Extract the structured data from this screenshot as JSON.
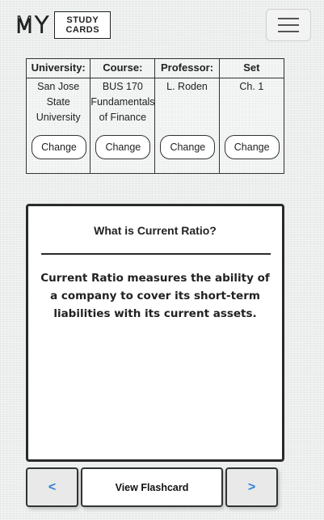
{
  "header": {
    "logo_my": "MY",
    "logo_line1": "STUDY",
    "logo_line2": "CARDS",
    "menu_icon": "hamburger-menu-icon"
  },
  "info": {
    "columns": [
      {
        "heading": "University:",
        "value": "San Jose State University",
        "button": "Change"
      },
      {
        "heading": "Course:",
        "value": "BUS 170 Fundamentals of Finance",
        "button": "Change"
      },
      {
        "heading": "Professor:",
        "value": "L. Roden",
        "button": "Change"
      },
      {
        "heading": "Set",
        "value": "Ch. 1",
        "button": "Change"
      }
    ]
  },
  "card": {
    "question": "What is Current Ratio?",
    "answer": "Current Ratio measures the ability of a company to cover its short-term liabilities with its current assets."
  },
  "controls": {
    "prev_label": "<",
    "view_label": "View Flashcard",
    "next_label": ">",
    "arrow_color": "#2f7fd4"
  }
}
